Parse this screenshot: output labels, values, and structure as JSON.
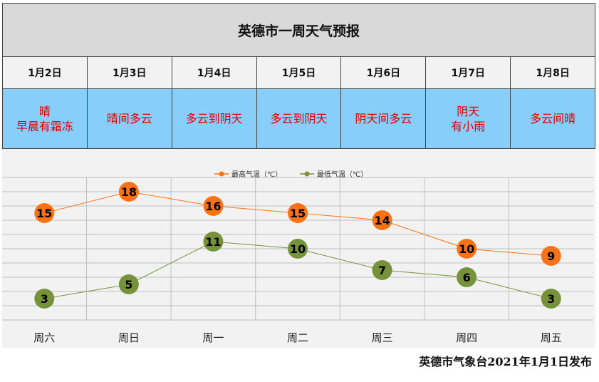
{
  "title": "英德市一周天气预报",
  "dates": [
    "1月2日",
    "1月3日",
    "1月4日",
    "1月5日",
    "1月6日",
    "1月7日",
    "1月8日"
  ],
  "weather": [
    "晴\n早晨有霜冻",
    "晴间多云",
    "多云到阴天",
    "多云到阴天",
    "阴天间多云",
    "阴天\n有小雨",
    "多云间晴"
  ],
  "colors": {
    "title_bg": "#d9d9d9",
    "weather_bg": "#87cefa",
    "weather_text": "#e00000",
    "high": "#f97316",
    "low": "#76933c"
  },
  "chart_data": {
    "type": "line",
    "categories": [
      "周六",
      "周日",
      "周一",
      "周二",
      "周三",
      "周四",
      "周五"
    ],
    "series": [
      {
        "name": "最高气温（℃）",
        "values": [
          15,
          18,
          16,
          15,
          14,
          10,
          9
        ],
        "color": "#f97316"
      },
      {
        "name": "最低气温（℃）",
        "values": [
          3,
          5,
          11,
          10,
          7,
          6,
          3
        ],
        "color": "#76933c"
      }
    ],
    "ylim": [
      0,
      20
    ],
    "grid": true,
    "legend": "top-center",
    "xlabel": "",
    "ylabel": ""
  },
  "footer": "英德市气象台2021年1月1日发布"
}
